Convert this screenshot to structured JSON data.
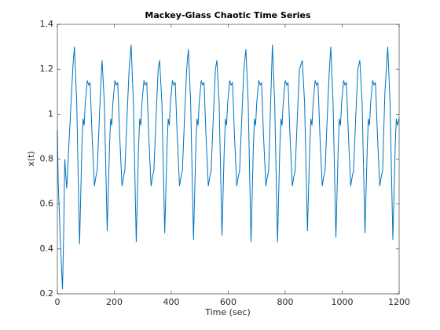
{
  "chart_data": {
    "type": "line",
    "title": "Mackey-Glass Chaotic Time Series",
    "xlabel": "Time (sec)",
    "ylabel": "x(t)",
    "color": "#0072bd",
    "xlim": [
      0,
      1200
    ],
    "ylim": [
      0.2,
      1.4
    ],
    "xticks": [
      0,
      200,
      400,
      600,
      800,
      1000,
      1200
    ],
    "yticks": [
      0.2,
      0.4,
      0.6,
      0.8,
      1,
      1.2,
      1.4
    ],
    "x": [
      0,
      3,
      10,
      18,
      22,
      26,
      30,
      33,
      40,
      48,
      55,
      60,
      68,
      78,
      86,
      90,
      94,
      98,
      105,
      110,
      115,
      122,
      130,
      135,
      140,
      148,
      155,
      157,
      165,
      175,
      183,
      187,
      191,
      195,
      202,
      207,
      212,
      219,
      227,
      232,
      237,
      245,
      252,
      259,
      267,
      277,
      285,
      289,
      293,
      297,
      304,
      309,
      314,
      321,
      329,
      334,
      339,
      347,
      354,
      359,
      367,
      377,
      385,
      389,
      393,
      397,
      404,
      409,
      414,
      421,
      429,
      434,
      439,
      447,
      454,
      460,
      468,
      478,
      486,
      490,
      494,
      498,
      505,
      510,
      515,
      522,
      530,
      535,
      540,
      548,
      555,
      560,
      568,
      578,
      586,
      590,
      594,
      598,
      605,
      610,
      615,
      622,
      630,
      635,
      640,
      648,
      655,
      662,
      670,
      680,
      688,
      692,
      696,
      700,
      707,
      712,
      717,
      724,
      732,
      737,
      742,
      750,
      755,
      763,
      773,
      781,
      785,
      789,
      793,
      800,
      805,
      810,
      817,
      825,
      830,
      835,
      843,
      850,
      860,
      868,
      878,
      886,
      890,
      894,
      898,
      905,
      910,
      915,
      922,
      930,
      935,
      940,
      948,
      955,
      960,
      968,
      978,
      986,
      990,
      994,
      998,
      1005,
      1010,
      1015,
      1022,
      1030,
      1035,
      1040,
      1048,
      1055,
      1062,
      1070,
      1080,
      1088,
      1092,
      1096,
      1100,
      1107,
      1112,
      1117,
      1124,
      1132,
      1137,
      1142,
      1150,
      1160,
      1168,
      1178,
      1186,
      1190,
      1194,
      1200
    ],
    "values": [
      0.93,
      0.7,
      0.45,
      0.22,
      0.45,
      0.8,
      0.72,
      0.67,
      0.85,
      1.05,
      1.22,
      1.3,
      1.05,
      0.42,
      0.85,
      0.98,
      0.95,
      1.05,
      1.15,
      1.13,
      1.14,
      0.9,
      0.68,
      0.72,
      0.75,
      1.0,
      1.2,
      1.24,
      1.05,
      0.48,
      0.85,
      0.98,
      0.95,
      1.05,
      1.15,
      1.13,
      1.14,
      0.9,
      0.68,
      0.72,
      0.75,
      1.0,
      1.2,
      1.31,
      1.05,
      0.43,
      0.85,
      0.98,
      0.95,
      1.05,
      1.15,
      1.13,
      1.14,
      0.9,
      0.68,
      0.72,
      0.75,
      1.0,
      1.2,
      1.24,
      1.05,
      0.47,
      0.85,
      0.98,
      0.95,
      1.05,
      1.15,
      1.13,
      1.14,
      0.9,
      0.68,
      0.72,
      0.75,
      1.0,
      1.2,
      1.29,
      1.05,
      0.44,
      0.85,
      0.98,
      0.95,
      1.05,
      1.15,
      1.13,
      1.14,
      0.9,
      0.68,
      0.72,
      0.75,
      1.0,
      1.2,
      1.24,
      1.05,
      0.46,
      0.85,
      0.98,
      0.95,
      1.05,
      1.15,
      1.13,
      1.14,
      0.9,
      0.68,
      0.72,
      0.75,
      1.0,
      1.2,
      1.29,
      1.05,
      0.43,
      0.85,
      0.98,
      0.95,
      1.05,
      1.15,
      1.13,
      1.14,
      0.9,
      0.68,
      0.72,
      0.75,
      1.1,
      1.31,
      1.05,
      0.43,
      0.85,
      0.98,
      0.95,
      1.05,
      1.15,
      1.13,
      1.14,
      0.9,
      0.68,
      0.72,
      0.75,
      1.0,
      1.2,
      1.24,
      1.05,
      0.48,
      0.85,
      0.98,
      0.95,
      1.05,
      1.15,
      1.13,
      1.14,
      0.9,
      0.68,
      0.72,
      0.75,
      1.0,
      1.2,
      1.3,
      1.05,
      0.45,
      0.85,
      0.98,
      0.95,
      1.05,
      1.15,
      1.13,
      1.14,
      0.9,
      0.68,
      0.72,
      0.75,
      1.0,
      1.2,
      1.24,
      1.05,
      0.47,
      0.85,
      0.98,
      0.95,
      1.05,
      1.15,
      1.13,
      1.14,
      0.9,
      0.68,
      0.72,
      0.75,
      1.1,
      1.3,
      1.05,
      0.44,
      0.85,
      0.98,
      0.95,
      0.98
    ]
  }
}
